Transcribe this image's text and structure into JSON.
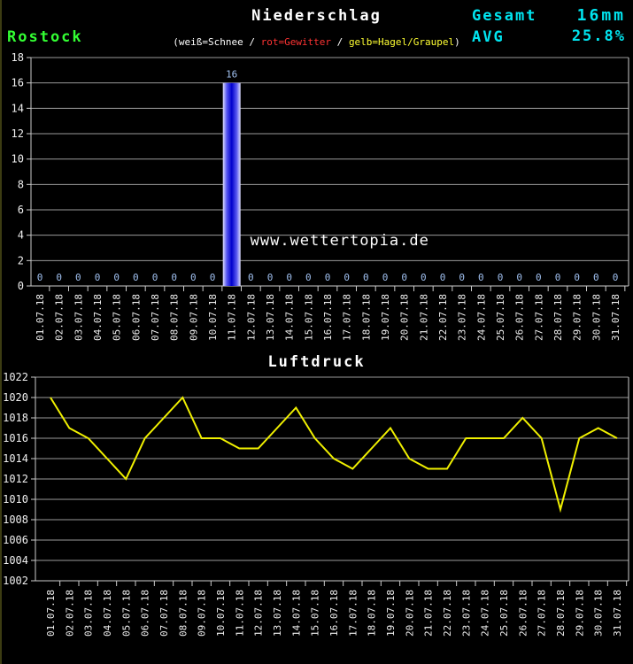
{
  "header": {
    "title": "Niederschlag",
    "station": "Rostock",
    "legend_open": "(",
    "legend_snow": "weiß=Schnee",
    "legend_sep1": " / ",
    "legend_thunder": "rot=Gewitter",
    "legend_sep2": " / ",
    "legend_hail": "gelb=Hagel/Graupel",
    "legend_close": ")",
    "total_label": "Gesamt",
    "total_value": "16mm",
    "avg_label": "AVG",
    "avg_value": "25.8%"
  },
  "watermark": "© www.wettertopia.de",
  "section2_title": "Luftdruck",
  "colors": {
    "background": "#000000",
    "title_white": "#ffffff",
    "station_green": "#33ff33",
    "accent_cyan": "#00e5f0",
    "legend_red": "#ff3333",
    "legend_yellow": "#ffff33",
    "grid": "#9a9a9a",
    "axis": "#cccccc",
    "tick_text": "#f0f0f0",
    "bar_label_blue": "#a0c0f0",
    "bar_blue_dark": "#0000cc",
    "bar_blue_mid": "#5858f0",
    "bar_blue_light": "#dedefc",
    "pressure_line_yellow": "#f0f000"
  },
  "chart_data": [
    {
      "type": "bar",
      "title": "Niederschlag",
      "xlabel": "",
      "ylabel": "",
      "ylim": [
        0,
        18
      ],
      "ytick_step": 2,
      "grid": true,
      "legend_position": "none",
      "categories": [
        "01.07.18",
        "02.07.18",
        "03.07.18",
        "04.07.18",
        "05.07.18",
        "06.07.18",
        "07.07.18",
        "08.07.18",
        "09.07.18",
        "10.07.18",
        "11.07.18",
        "12.07.18",
        "13.07.18",
        "14.07.18",
        "15.07.18",
        "16.07.18",
        "17.07.18",
        "18.07.18",
        "19.07.18",
        "20.07.18",
        "21.07.18",
        "22.07.18",
        "23.07.18",
        "24.07.18",
        "25.07.18",
        "26.07.18",
        "27.07.18",
        "28.07.18",
        "29.07.18",
        "30.07.18",
        "31.07.18"
      ],
      "values": [
        0,
        0,
        0,
        0,
        0,
        0,
        0,
        0,
        0,
        0,
        16,
        0,
        0,
        0,
        0,
        0,
        0,
        0,
        0,
        0,
        0,
        0,
        0,
        0,
        0,
        0,
        0,
        0,
        0,
        0,
        0
      ],
      "total_shown": "16mm",
      "avg_shown": "25.8%"
    },
    {
      "type": "line",
      "title": "Luftdruck",
      "xlabel": "",
      "ylabel": "",
      "ylim": [
        1002,
        1022
      ],
      "ytick_step": 2,
      "grid": true,
      "legend_position": "none",
      "categories": [
        "01.07.18",
        "02.07.18",
        "03.07.18",
        "04.07.18",
        "05.07.18",
        "06.07.18",
        "07.07.18",
        "08.07.18",
        "09.07.18",
        "10.07.18",
        "11.07.18",
        "12.07.18",
        "13.07.18",
        "14.07.18",
        "15.07.18",
        "16.07.18",
        "17.07.18",
        "18.07.18",
        "19.07.18",
        "20.07.18",
        "21.07.18",
        "22.07.18",
        "23.07.18",
        "24.07.18",
        "25.07.18",
        "26.07.18",
        "27.07.18",
        "28.07.18",
        "29.07.18",
        "30.07.18",
        "31.07.18"
      ],
      "values": [
        1020,
        1017,
        1016,
        1014,
        1012,
        1016,
        1018,
        1020,
        1016,
        1016,
        1015,
        1015,
        1017,
        1019,
        1016,
        1014,
        1013,
        1015,
        1017,
        1014,
        1013,
        1013,
        1016,
        1016,
        1016,
        1018,
        1016,
        1009,
        1016,
        1017,
        1016
      ]
    }
  ]
}
